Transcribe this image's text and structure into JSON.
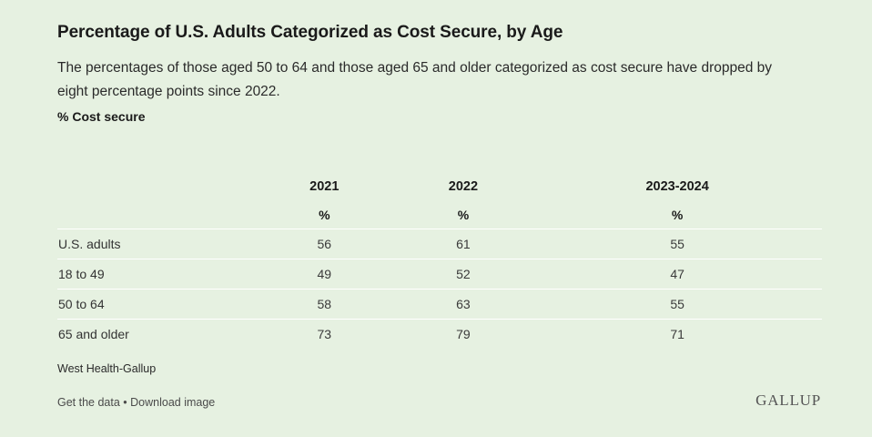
{
  "header": {
    "title": "Percentage of U.S. Adults Categorized as Cost Secure, by Age",
    "subtitle": "The percentages of those aged 50 to 64 and those aged 65 and older categorized as cost secure have dropped by eight percentage points since 2022.",
    "unit_label": "% Cost secure"
  },
  "chart_data": {
    "type": "table",
    "title": "Percentage of U.S. Adults Categorized as Cost Secure, by Age",
    "columns": [
      "2021",
      "2022",
      "2023-2024"
    ],
    "column_units": [
      "%",
      "%",
      "%"
    ],
    "rows": [
      {
        "label": "U.S. adults",
        "values": [
          56,
          61,
          55
        ]
      },
      {
        "label": "18 to 49",
        "values": [
          49,
          52,
          47
        ]
      },
      {
        "label": "50 to 64",
        "values": [
          58,
          63,
          55
        ]
      },
      {
        "label": "65 and older",
        "values": [
          73,
          79,
          71
        ]
      }
    ]
  },
  "footer": {
    "source": "West Health-Gallup",
    "get_data": "Get the data",
    "separator": " • ",
    "download": "Download image",
    "brand": "GALLUP"
  }
}
